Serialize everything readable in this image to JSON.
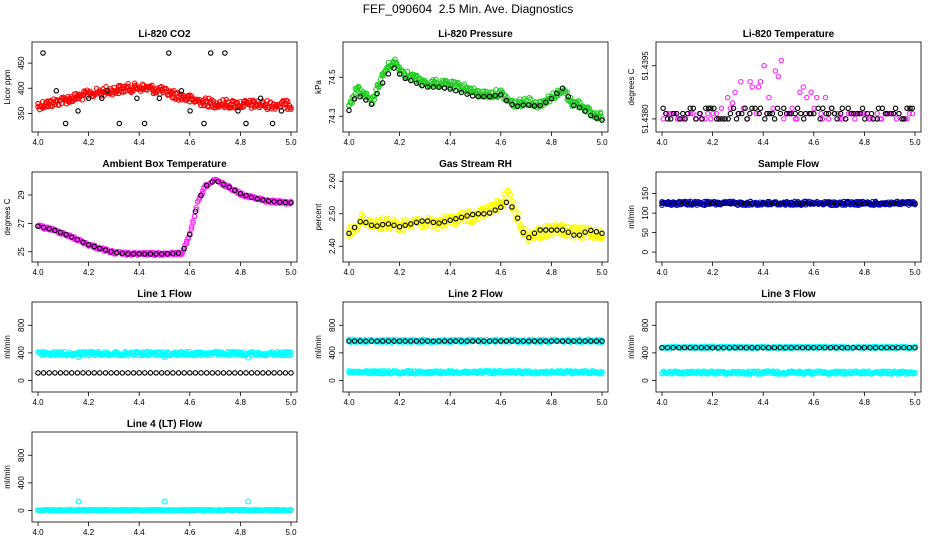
{
  "title": "FEF_090604  2.5 Min. Ave. Diagnostics",
  "colors": {
    "black": "#000000",
    "red": "#ff0000",
    "green": "#22cc22",
    "magenta": "#ff22ff",
    "yellow": "#ffff00",
    "blue": "#0000cc",
    "cyan": "#00ffff"
  },
  "chart_data": [
    {
      "id": "co2",
      "type": "scatter",
      "title": "Li-820 CO2",
      "ylabel": "Licor ppm",
      "xlim": [
        4.0,
        5.0
      ],
      "ylim": [
        325,
        480
      ],
      "xticks": [
        "4.0",
        "4.2",
        "4.4",
        "4.6",
        "4.8",
        "5.0"
      ],
      "yticks": [
        "350",
        "400",
        "450"
      ],
      "ytick_values": [
        350,
        400,
        450
      ],
      "series": [
        {
          "name": "dense",
          "color": "red",
          "points": [
            [
              4.0,
              366
            ],
            [
              4.05,
              370
            ],
            [
              4.1,
              376
            ],
            [
              4.15,
              382
            ],
            [
              4.2,
              388
            ],
            [
              4.25,
              393
            ],
            [
              4.3,
              396
            ],
            [
              4.35,
              400
            ],
            [
              4.4,
              402
            ],
            [
              4.45,
              399
            ],
            [
              4.5,
              393
            ],
            [
              4.55,
              386
            ],
            [
              4.6,
              378
            ],
            [
              4.65,
              373
            ],
            [
              4.7,
              370
            ],
            [
              4.75,
              369
            ],
            [
              4.8,
              368
            ],
            [
              4.85,
              368
            ],
            [
              4.9,
              367
            ],
            [
              4.95,
              367
            ],
            [
              5.0,
              367
            ]
          ],
          "band": 9
        },
        {
          "name": "discrete",
          "color": "black",
          "levels": [
            330,
            355,
            380,
            395,
            470
          ]
        }
      ]
    },
    {
      "id": "pressure",
      "type": "scatter",
      "title": "Li-820 Pressure",
      "ylabel": "kPa",
      "xlim": [
        4.0,
        5.0
      ],
      "ylim": [
        74.25,
        74.65
      ],
      "xticks": [
        "4.0",
        "4.2",
        "4.4",
        "4.6",
        "4.8",
        "5.0"
      ],
      "yticks": [
        "74.3",
        "74.5"
      ],
      "ytick_values": [
        74.3,
        74.5
      ],
      "series": [
        {
          "name": "dense",
          "color": "green",
          "points": [
            [
              4.0,
              74.34
            ],
            [
              4.03,
              74.44
            ],
            [
              4.06,
              74.41
            ],
            [
              4.09,
              74.37
            ],
            [
              4.12,
              74.47
            ],
            [
              4.15,
              74.55
            ],
            [
              4.18,
              74.58
            ],
            [
              4.21,
              74.53
            ],
            [
              4.25,
              74.5
            ],
            [
              4.3,
              74.47
            ],
            [
              4.35,
              74.47
            ],
            [
              4.4,
              74.46
            ],
            [
              4.45,
              74.45
            ],
            [
              4.5,
              74.42
            ],
            [
              4.55,
              74.41
            ],
            [
              4.6,
              74.42
            ],
            [
              4.63,
              74.38
            ],
            [
              4.66,
              74.36
            ],
            [
              4.7,
              74.38
            ],
            [
              4.75,
              74.36
            ],
            [
              4.8,
              74.4
            ],
            [
              4.85,
              74.43
            ],
            [
              4.88,
              74.37
            ],
            [
              4.92,
              74.36
            ],
            [
              4.96,
              74.31
            ],
            [
              5.0,
              74.3
            ]
          ],
          "band": 8
        },
        {
          "name": "black",
          "color": "black",
          "points": [
            [
              4.0,
              74.33
            ],
            [
              4.03,
              74.41
            ],
            [
              4.06,
              74.39
            ],
            [
              4.09,
              74.36
            ],
            [
              4.12,
              74.44
            ],
            [
              4.15,
              74.51
            ],
            [
              4.18,
              74.55
            ],
            [
              4.21,
              74.5
            ],
            [
              4.25,
              74.48
            ],
            [
              4.3,
              74.45
            ],
            [
              4.35,
              74.45
            ],
            [
              4.4,
              74.44
            ],
            [
              4.45,
              74.42
            ],
            [
              4.5,
              74.4
            ],
            [
              4.55,
              74.4
            ],
            [
              4.6,
              74.41
            ],
            [
              4.63,
              74.37
            ],
            [
              4.66,
              74.35
            ],
            [
              4.7,
              74.36
            ],
            [
              4.75,
              74.35
            ],
            [
              4.8,
              74.39
            ],
            [
              4.85,
              74.45
            ],
            [
              4.88,
              74.36
            ],
            [
              4.92,
              74.34
            ],
            [
              4.96,
              74.3
            ],
            [
              5.0,
              74.28
            ]
          ]
        }
      ]
    },
    {
      "id": "temperature",
      "type": "scatter",
      "title": "Li-820 Temperature",
      "ylabel": "degrees C",
      "xlim": [
        4.0,
        5.0
      ],
      "ylim": [
        51.4378,
        51.44
      ],
      "xticks": [
        "4.0",
        "4.2",
        "4.4",
        "4.6",
        "4.8",
        "5.0"
      ],
      "yticks": [
        "51.4380",
        "51.4395"
      ],
      "ytick_values": [
        51.438,
        51.4395
      ],
      "series": [
        {
          "name": "magenta",
          "color": "magenta",
          "levels": [
            51.438,
            51.43815,
            51.4383,
            51.43845,
            51.4386,
            51.43875,
            51.4389,
            51.43905,
            51.4392,
            51.43935,
            51.4395,
            51.43965,
            51.4398
          ]
        },
        {
          "name": "black",
          "color": "black",
          "levels": [
            51.438,
            51.43815,
            51.4383
          ]
        }
      ]
    },
    {
      "id": "ambient",
      "type": "scatter",
      "title": "Ambient Box Temperature",
      "ylabel": "degrees C",
      "xlim": [
        4.0,
        5.0
      ],
      "ylim": [
        24.7,
        30.2
      ],
      "xticks": [
        "4.0",
        "4.2",
        "4.4",
        "4.6",
        "4.8",
        "5.0"
      ],
      "yticks": [
        "25",
        "27",
        "29"
      ],
      "ytick_values": [
        25,
        27,
        29
      ],
      "series": [
        {
          "name": "magenta",
          "color": "magenta",
          "points": [
            [
              4.0,
              26.8
            ],
            [
              4.05,
              26.6
            ],
            [
              4.1,
              26.3
            ],
            [
              4.15,
              25.9
            ],
            [
              4.2,
              25.5
            ],
            [
              4.25,
              25.2
            ],
            [
              4.3,
              24.95
            ],
            [
              4.35,
              24.85
            ],
            [
              4.4,
              24.85
            ],
            [
              4.45,
              24.85
            ],
            [
              4.5,
              24.85
            ],
            [
              4.57,
              24.9
            ],
            [
              4.6,
              26.2
            ],
            [
              4.63,
              28.4
            ],
            [
              4.66,
              29.6
            ],
            [
              4.7,
              30.05
            ],
            [
              4.75,
              29.6
            ],
            [
              4.8,
              29.1
            ],
            [
              4.85,
              28.8
            ],
            [
              4.9,
              28.6
            ],
            [
              4.95,
              28.5
            ],
            [
              5.0,
              28.45
            ]
          ],
          "band": 3
        },
        {
          "name": "black",
          "color": "black",
          "same": true
        }
      ]
    },
    {
      "id": "rh",
      "type": "scatter",
      "title": "Gas Stream RH",
      "ylabel": "percent",
      "xlim": [
        4.0,
        5.0
      ],
      "ylim": [
        2.37,
        2.61
      ],
      "xticks": [
        "4.0",
        "4.2",
        "4.4",
        "4.6",
        "4.8",
        "5.0"
      ],
      "yticks": [
        "2.40",
        "2.50",
        "2.60"
      ],
      "ytick_values": [
        2.4,
        2.5,
        2.6
      ],
      "series": [
        {
          "name": "yellow",
          "color": "yellow",
          "points": [
            [
              4.0,
              2.44
            ],
            [
              4.05,
              2.48
            ],
            [
              4.1,
              2.47
            ],
            [
              4.15,
              2.47
            ],
            [
              4.2,
              2.46
            ],
            [
              4.25,
              2.48
            ],
            [
              4.3,
              2.47
            ],
            [
              4.35,
              2.47
            ],
            [
              4.4,
              2.48
            ],
            [
              4.45,
              2.49
            ],
            [
              4.5,
              2.49
            ],
            [
              4.55,
              2.51
            ],
            [
              4.6,
              2.53
            ],
            [
              4.63,
              2.56
            ],
            [
              4.66,
              2.5
            ],
            [
              4.7,
              2.43
            ],
            [
              4.75,
              2.44
            ],
            [
              4.8,
              2.45
            ],
            [
              4.85,
              2.45
            ],
            [
              4.9,
              2.44
            ],
            [
              4.95,
              2.44
            ],
            [
              5.0,
              2.44
            ]
          ],
          "band": 12
        },
        {
          "name": "black",
          "color": "black",
          "points": [
            [
              4.0,
              2.44
            ],
            [
              4.05,
              2.48
            ],
            [
              4.1,
              2.46
            ],
            [
              4.15,
              2.47
            ],
            [
              4.2,
              2.46
            ],
            [
              4.25,
              2.47
            ],
            [
              4.3,
              2.48
            ],
            [
              4.35,
              2.47
            ],
            [
              4.4,
              2.48
            ],
            [
              4.45,
              2.49
            ],
            [
              4.5,
              2.5
            ],
            [
              4.55,
              2.5
            ],
            [
              4.6,
              2.52
            ],
            [
              4.63,
              2.54
            ],
            [
              4.66,
              2.5
            ],
            [
              4.7,
              2.42
            ],
            [
              4.75,
              2.45
            ],
            [
              4.8,
              2.45
            ],
            [
              4.85,
              2.45
            ],
            [
              4.9,
              2.43
            ],
            [
              4.95,
              2.45
            ],
            [
              5.0,
              2.44
            ]
          ]
        }
      ]
    },
    {
      "id": "sample",
      "type": "scatter",
      "title": "Sample Flow",
      "ylabel": "ml/min",
      "xlim": [
        4.0,
        5.0
      ],
      "ylim": [
        -10,
        190
      ],
      "xticks": [
        "4.0",
        "4.2",
        "4.4",
        "4.6",
        "4.8",
        "5.0"
      ],
      "yticks": [
        "0",
        "50",
        "100",
        "150"
      ],
      "ytick_values": [
        0,
        50,
        100,
        150
      ],
      "series": [
        {
          "name": "blue",
          "color": "blue",
          "flat": 125,
          "band": 4
        },
        {
          "name": "black",
          "color": "black",
          "flat": 125
        }
      ]
    },
    {
      "id": "line1",
      "type": "scatter",
      "title": "Line 1 Flow",
      "ylabel": "ml/min",
      "xlim": [
        4.0,
        5.0
      ],
      "ylim": [
        -80,
        1050
      ],
      "xticks": [
        "4.0",
        "4.2",
        "4.4",
        "4.6",
        "4.8",
        "5.0"
      ],
      "yticks": [
        "0",
        "400",
        "800"
      ],
      "ytick_values": [
        0,
        400,
        800
      ],
      "series": [
        {
          "name": "cyan",
          "color": "cyan",
          "flat": 390,
          "band": 4,
          "outliers": [
            [
              4.16,
              340
            ],
            [
              4.5,
              340
            ],
            [
              4.83,
              330
            ]
          ]
        },
        {
          "name": "black",
          "color": "black",
          "flat": 110
        }
      ]
    },
    {
      "id": "line2",
      "type": "scatter",
      "title": "Line 2 Flow",
      "ylabel": "ml/min",
      "xlim": [
        4.0,
        5.0
      ],
      "ylim": [
        -80,
        1050
      ],
      "xticks": [
        "4.0",
        "4.2",
        "4.4",
        "4.6",
        "4.8",
        "5.0"
      ],
      "yticks": [
        "0",
        "400",
        "800"
      ],
      "ytick_values": [
        0,
        400,
        800
      ],
      "series": [
        {
          "name": "cyan-top",
          "color": "cyan",
          "flat": 575,
          "band": 3
        },
        {
          "name": "black",
          "color": "black",
          "flat": 570
        },
        {
          "name": "cyan-bottom",
          "color": "cyan",
          "flat": 120,
          "band": 3
        }
      ]
    },
    {
      "id": "line3",
      "type": "scatter",
      "title": "Line 3 Flow",
      "ylabel": "ml/min",
      "xlim": [
        4.0,
        5.0
      ],
      "ylim": [
        -80,
        1050
      ],
      "xticks": [
        "4.0",
        "4.2",
        "4.4",
        "4.6",
        "4.8",
        "5.0"
      ],
      "yticks": [
        "0",
        "400",
        "800"
      ],
      "ytick_values": [
        0,
        400,
        800
      ],
      "series": [
        {
          "name": "cyan-top",
          "color": "cyan",
          "flat": 480,
          "band": 2
        },
        {
          "name": "black",
          "color": "black",
          "flat": 475
        },
        {
          "name": "cyan-bottom",
          "color": "cyan",
          "flat": 115,
          "band": 3
        }
      ]
    },
    {
      "id": "line4",
      "type": "scatter",
      "title": "Line 4 (LT) Flow",
      "ylabel": "ml/min",
      "xlim": [
        4.0,
        5.0
      ],
      "ylim": [
        -80,
        1050
      ],
      "xticks": [
        "4.0",
        "4.2",
        "4.4",
        "4.6",
        "4.8",
        "5.0"
      ],
      "yticks": [
        "0",
        "400",
        "800"
      ],
      "ytick_values": [
        0,
        400,
        800
      ],
      "series": [
        {
          "name": "black",
          "color": "black",
          "flat": 5
        },
        {
          "name": "cyan",
          "color": "cyan",
          "flat": 5,
          "band": 1,
          "outliers": [
            [
              4.16,
              130
            ],
            [
              4.5,
              130
            ],
            [
              4.83,
              130
            ]
          ]
        }
      ]
    }
  ]
}
